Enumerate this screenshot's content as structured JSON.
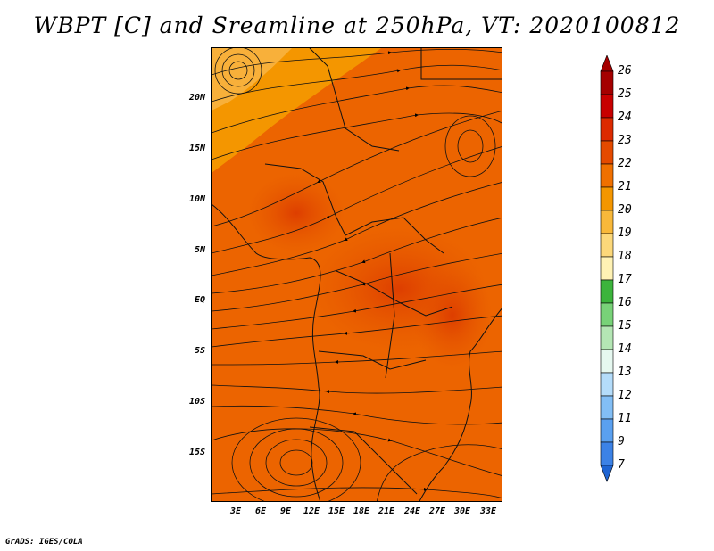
{
  "title": "WBPT [C] and Sreamline at 250hPa, VT: 2020100812",
  "axes": {
    "lat_labels": [
      "20N",
      "15N",
      "10N",
      "5N",
      "EQ",
      "5S",
      "10S",
      "15S"
    ],
    "lon_labels": [
      "3E",
      "6E",
      "9E",
      "12E",
      "15E",
      "18E",
      "21E",
      "24E",
      "27E",
      "30E",
      "33E"
    ]
  },
  "colorbar": {
    "labels": [
      "26",
      "25",
      "24",
      "23",
      "22",
      "21",
      "20",
      "19",
      "18",
      "17",
      "16",
      "15",
      "14",
      "13",
      "12",
      "11",
      "9",
      "7"
    ],
    "colors": [
      "#a50000",
      "#c80000",
      "#dc2a00",
      "#e44a00",
      "#f07000",
      "#f49600",
      "#f8b83a",
      "#fcd87a",
      "#fff2b4",
      "#3cb43c",
      "#78d278",
      "#b4e6b4",
      "#e6f8f0",
      "#b4dcfa",
      "#82bef5",
      "#5aa0f0",
      "#3c82e6",
      "#1e64d2"
    ]
  },
  "credit": "GrADS: IGES/COLA"
}
